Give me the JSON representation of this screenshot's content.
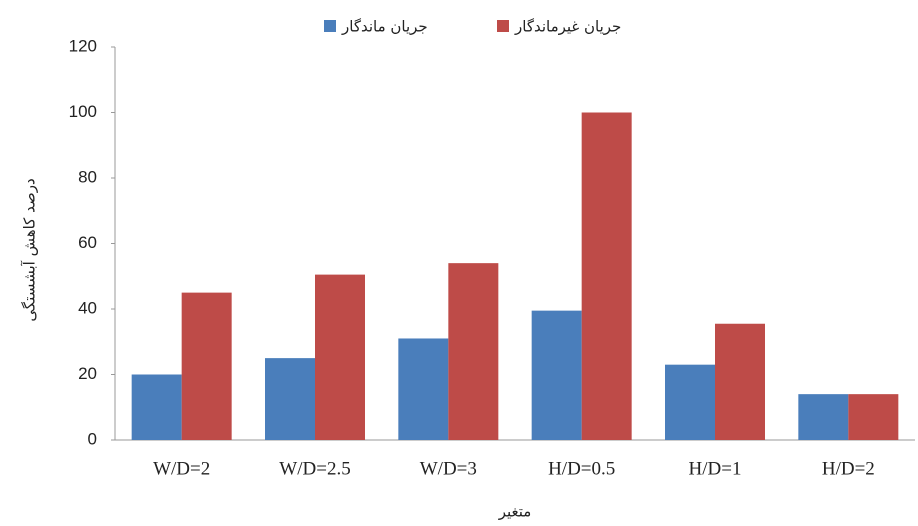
{
  "chart_data": {
    "type": "bar",
    "categories": [
      "W/D=2",
      "W/D=2.5",
      "W/D=3",
      "H/D=0.5",
      "H/D=1",
      "H/D=2"
    ],
    "series": [
      {
        "name": "جریان ماندگار",
        "color": "#4a7ebb",
        "values": [
          20,
          25,
          31,
          39.5,
          23,
          14
        ]
      },
      {
        "name": "جریان غیرماندگار",
        "color": "#be4b48",
        "values": [
          45,
          50.5,
          54,
          100,
          35.5,
          14
        ]
      }
    ],
    "y_label": "درصد کاهش آبشستگی",
    "x_label": "متغیر",
    "ylim": [
      0,
      120
    ],
    "yticks": [
      0,
      20,
      40,
      60,
      80,
      100,
      120
    ],
    "grid": false,
    "legend": "top"
  }
}
